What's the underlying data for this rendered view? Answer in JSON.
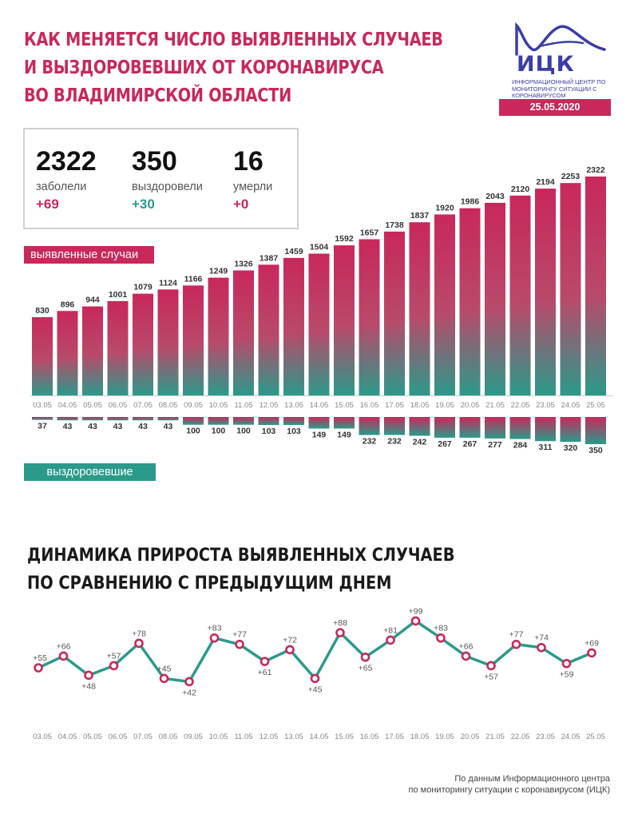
{
  "header": {
    "title_lines": [
      "КАК МЕНЯЕТСЯ ЧИСЛО ВЫЯВЛЕННЫХ СЛУЧАЕВ",
      "И ВЫЗДОРОВЕВШИХ ОТ КОРОНАВИРУСА",
      "ВО ВЛАДИМИРСКОЙ ОБЛАСТИ"
    ]
  },
  "logo": {
    "name": "ИЦК",
    "description": "Информационный центр по мониторингу ситуации с коронавирусом",
    "date": "25.05.2020"
  },
  "stats": [
    {
      "value": "2322",
      "label": "заболели",
      "delta": "+69"
    },
    {
      "value": "350",
      "label": "выздоровели",
      "delta": "+30"
    },
    {
      "value": "16",
      "label": "умерли",
      "delta": "+0"
    }
  ],
  "labels": {
    "cases": "выявленные случаи",
    "recovered": "выздоровевшие"
  },
  "section2": {
    "title_lines": [
      "ДИНАМИКА ПРИРОСТА ВЫЯВЛЕННЫХ СЛУЧАЕВ",
      "ПО СРАВНЕНИЮ С ПРЕДЫДУЩИМ ДНЕМ"
    ]
  },
  "footer": {
    "lines": [
      "По данным Информационного центра",
      "по мониторингу ситуации с коронавирусом (ИЦК)"
    ]
  },
  "colors": {
    "accent": "#c8285a",
    "teal": "#2a9a8a",
    "logo_blue": "#3a3da8"
  },
  "chart_data": [
    {
      "type": "bar",
      "series": [
        {
          "name": "выявленные случаи",
          "values": [
            830,
            896,
            944,
            1001,
            1079,
            1124,
            1166,
            1249,
            1326,
            1387,
            1459,
            1504,
            1592,
            1657,
            1738,
            1837,
            1920,
            1986,
            2043,
            2120,
            2194,
            2253,
            2322
          ]
        }
      ],
      "categories": [
        "03.05",
        "04.05",
        "05.05",
        "06.05",
        "07.05",
        "08.05",
        "09.05",
        "10.05",
        "11.05",
        "12.05",
        "13.05",
        "14.05",
        "15.05",
        "16.05",
        "17.05",
        "18.05",
        "19.05",
        "20.05",
        "21.05",
        "22.05",
        "23.05",
        "24.05",
        "25.05"
      ],
      "ylim": [
        0,
        2322
      ]
    },
    {
      "type": "bar",
      "series": [
        {
          "name": "выздоровевшие",
          "values": [
            37,
            43,
            43,
            43,
            43,
            43,
            100,
            100,
            100,
            103,
            103,
            149,
            149,
            232,
            232,
            242,
            267,
            267,
            277,
            284,
            311,
            320,
            350
          ]
        }
      ],
      "categories": [
        "03.05",
        "04.05",
        "05.05",
        "06.05",
        "07.05",
        "08.05",
        "09.05",
        "10.05",
        "11.05",
        "12.05",
        "13.05",
        "14.05",
        "15.05",
        "16.05",
        "17.05",
        "18.05",
        "19.05",
        "20.05",
        "21.05",
        "22.05",
        "23.05",
        "24.05",
        "25.05"
      ],
      "ylim": [
        0,
        350
      ]
    },
    {
      "type": "line",
      "categories": [
        "03.05",
        "04.05",
        "05.05",
        "06.05",
        "07.05",
        "08.05",
        "09.05",
        "10.05",
        "11.05",
        "12.05",
        "13.05",
        "14.05",
        "15.05",
        "16.05",
        "17.05",
        "18.05",
        "19.05",
        "20.05",
        "21.05",
        "22.05",
        "23.05",
        "24.05",
        "25.05"
      ],
      "values": [
        55,
        66,
        48,
        57,
        78,
        45,
        42,
        83,
        77,
        61,
        72,
        45,
        88,
        65,
        81,
        99,
        83,
        66,
        57,
        77,
        74,
        59,
        69
      ],
      "value_labels": [
        "+55",
        "+66",
        "+48",
        "+57",
        "+78",
        "+45",
        "+42",
        "+83",
        "+77",
        "+61",
        "+72",
        "+45",
        "+88",
        "+65",
        "+81",
        "+99",
        "+83",
        "+66",
        "+57",
        "+77",
        "+74",
        "+59",
        "+69"
      ]
    }
  ]
}
